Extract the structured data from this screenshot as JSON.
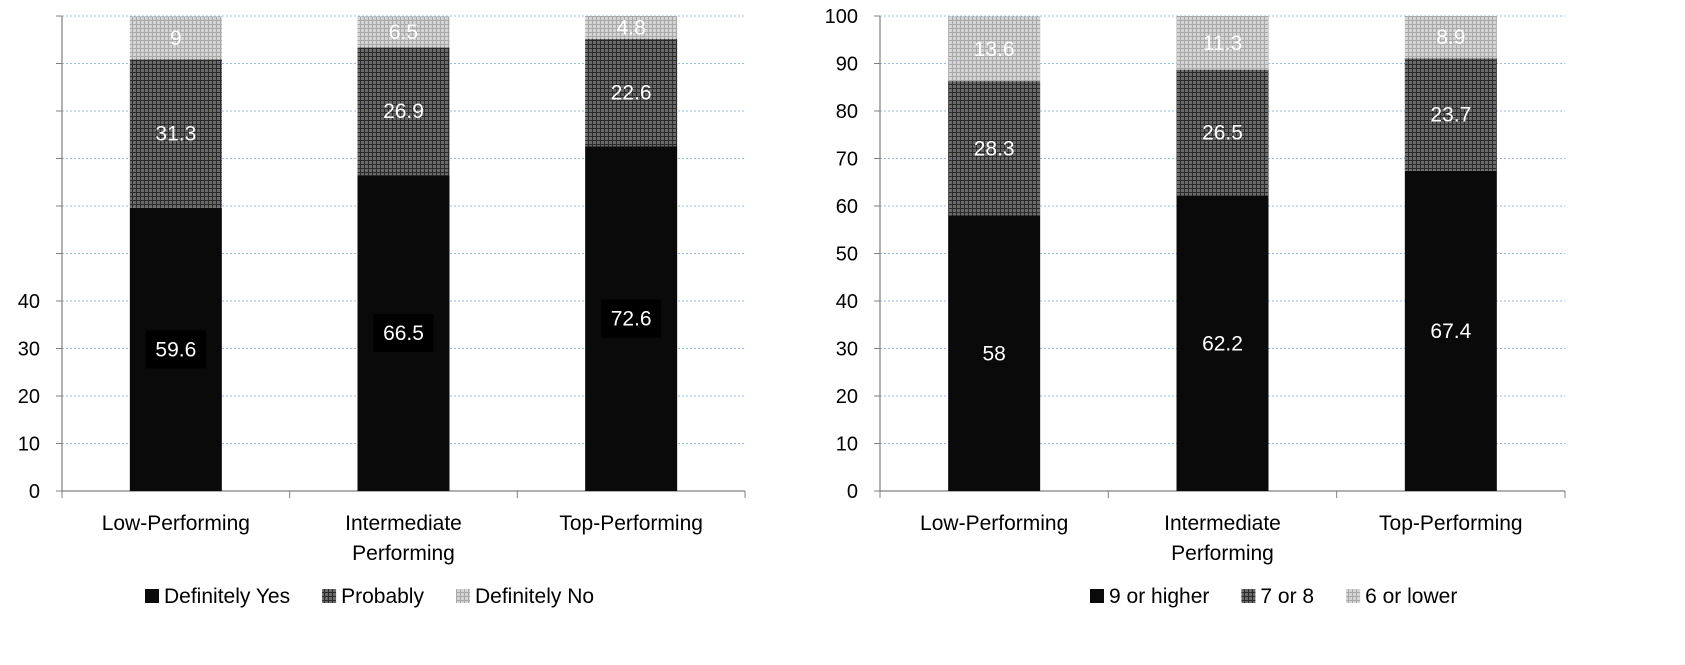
{
  "chart_data": [
    {
      "type": "bar",
      "stacked": true,
      "title": "",
      "xlabel": "",
      "ylabel": "",
      "categories": [
        "Low-Performing",
        "Intermediate Performing",
        "Top-Performing"
      ],
      "category_lines": [
        [
          "Low-Performing"
        ],
        [
          "Intermediate",
          "Performing"
        ],
        [
          "Top-Performing"
        ]
      ],
      "ylim": [
        0,
        100
      ],
      "yticks": [
        "0",
        "10",
        "20",
        "30",
        "40"
      ],
      "series": [
        {
          "name": "Definitely Yes",
          "values": [
            59.6,
            66.5,
            72.6
          ],
          "pattern": "solid",
          "color": "#0a0a0a",
          "labels": [
            "59.6",
            "66.5",
            "72.6"
          ],
          "boxed": true
        },
        {
          "name": "Probably",
          "values": [
            31.3,
            26.9,
            22.6
          ],
          "pattern": "dark-grid",
          "color": "#505050",
          "labels": [
            "31.3",
            "26.9",
            "22.6"
          ]
        },
        {
          "name": "Definitely No",
          "values": [
            9,
            6.5,
            4.8
          ],
          "pattern": "light-grid",
          "color": "#c4c4c4",
          "labels": [
            "9",
            "6.5",
            "4.8"
          ]
        }
      ],
      "grid": true,
      "legend": "bottom"
    },
    {
      "type": "bar",
      "stacked": true,
      "title": "",
      "xlabel": "",
      "ylabel": "",
      "categories": [
        "Low-Performing",
        "Intermediate Performing",
        "Top-Performing"
      ],
      "category_lines": [
        [
          "Low-Performing"
        ],
        [
          "Intermediate",
          "Performing"
        ],
        [
          "Top-Performing"
        ]
      ],
      "ylim": [
        0,
        100
      ],
      "yticks": [
        "0",
        "10",
        "20",
        "30",
        "40",
        "50",
        "60",
        "70",
        "80",
        "90",
        "100"
      ],
      "series": [
        {
          "name": "9 or higher",
          "values": [
            58,
            62.2,
            67.4
          ],
          "pattern": "solid",
          "color": "#0a0a0a",
          "labels": [
            "58",
            "62.2",
            "67.4"
          ],
          "boxed": false
        },
        {
          "name": "7 or 8",
          "values": [
            28.3,
            26.5,
            23.7
          ],
          "pattern": "dark-grid",
          "color": "#505050",
          "labels": [
            "28.3",
            "26.5",
            "23.7"
          ]
        },
        {
          "name": "6 or lower",
          "values": [
            13.6,
            11.3,
            8.9
          ],
          "pattern": "light-grid",
          "color": "#c4c4c4",
          "labels": [
            "13.6",
            "11.3",
            "8.9"
          ]
        }
      ],
      "grid": true,
      "legend": "bottom"
    }
  ]
}
